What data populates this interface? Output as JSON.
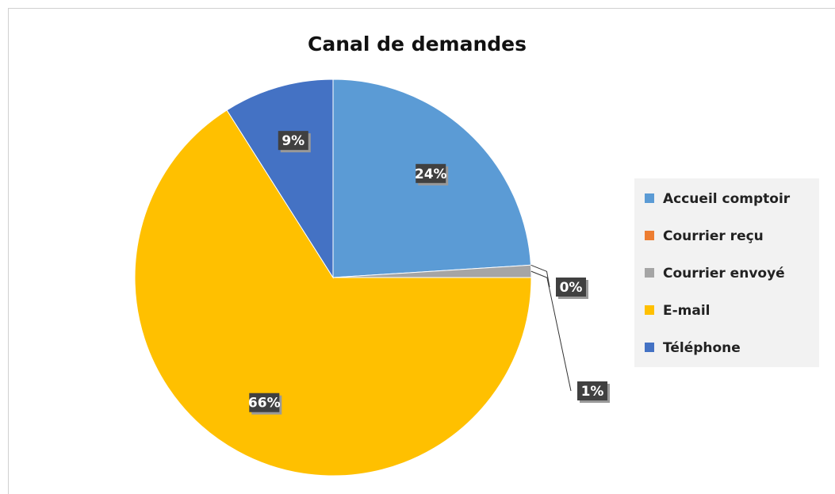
{
  "chart_data": {
    "type": "pie",
    "title": "Canal de demandes",
    "categories": [
      "Accueil comptoir",
      "Courrier reçu",
      "Courrier envoyé",
      "E-mail",
      "Téléphone"
    ],
    "values": [
      24,
      0,
      1,
      66,
      9
    ],
    "value_labels": [
      "24%",
      "0%",
      "1%",
      "66%",
      "9%"
    ],
    "colors": [
      "#5b9bd5",
      "#ed7d31",
      "#a5a5a5",
      "#ffc000",
      "#4472c4"
    ],
    "legend": "right"
  }
}
